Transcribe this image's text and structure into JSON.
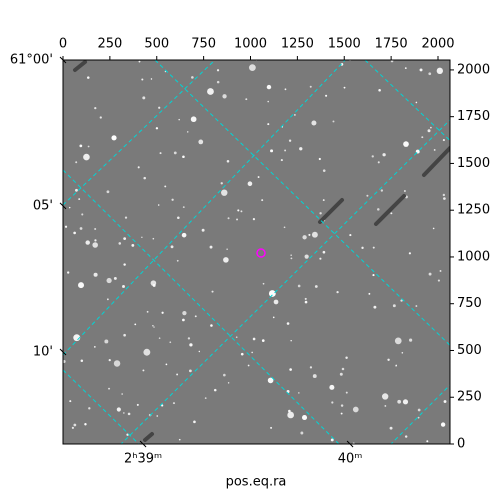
{
  "chart_data": {
    "type": "image",
    "xlabel": "pos.eq.ra",
    "xlim": [
      0,
      2064
    ],
    "ylim": [
      0,
      2053
    ],
    "xticks": [
      0,
      250,
      500,
      750,
      1000,
      1250,
      1500,
      1750,
      2000
    ],
    "yticks": [
      0,
      250,
      500,
      750,
      1000,
      1250,
      1500,
      1750,
      2000
    ],
    "ra_ticks": [
      {
        "value": 427,
        "label": "2ʰ39ᵐ"
      },
      {
        "value": 1531,
        "label": "40ᵐ"
      }
    ],
    "dec_ticks": [
      {
        "value": 2053,
        "label": "61°00'"
      },
      {
        "value": 1273,
        "label": "05'"
      },
      {
        "value": 492,
        "label": "10'"
      }
    ],
    "marker": {
      "x": 1056,
      "y": 1021,
      "color": "#ff00ff"
    }
  }
}
